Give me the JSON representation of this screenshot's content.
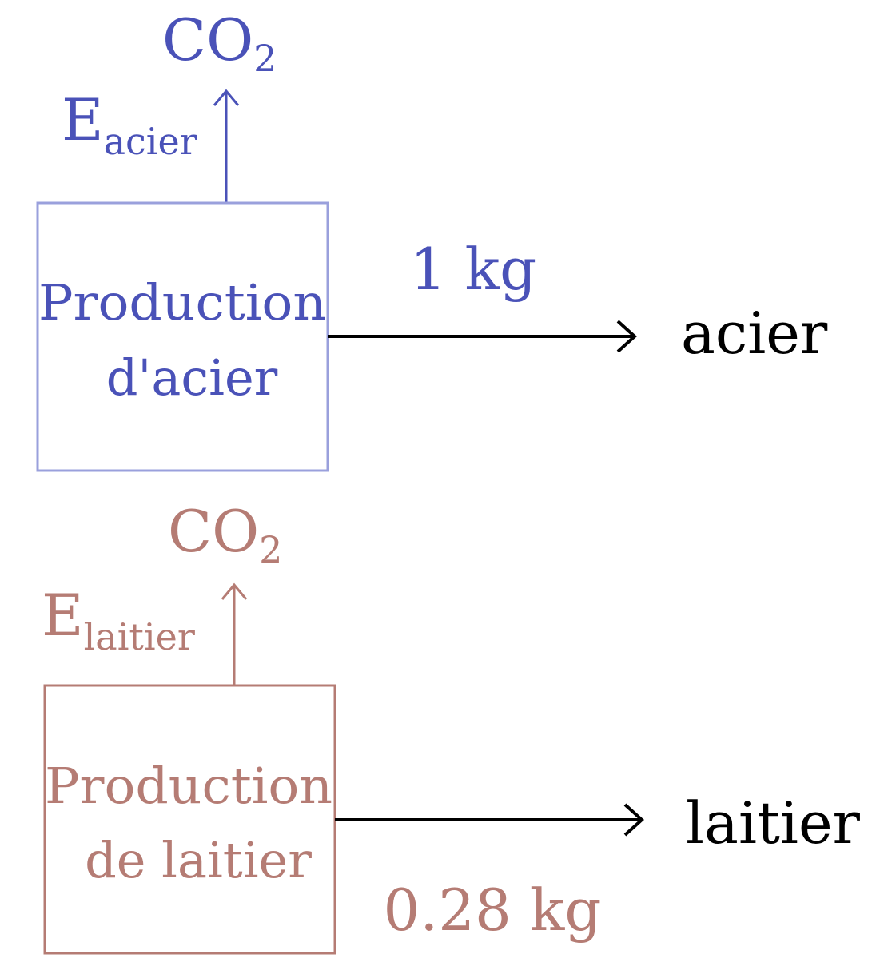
{
  "colors": {
    "steel": "#4a52b8",
    "steel_box": "#9aa0dc",
    "slag": "#b57c74",
    "black": "#000000"
  },
  "steel": {
    "gas": "CO",
    "gas_subscript": "2",
    "emission_symbol": "E",
    "emission_subscript": "acier",
    "box_line1": "Production",
    "box_line2": "d'acier",
    "quantity": "1 kg",
    "output": "acier"
  },
  "slag": {
    "gas": "CO",
    "gas_subscript": "2",
    "emission_symbol": "E",
    "emission_subscript": "laitier",
    "box_line1": "Production",
    "box_line2": "de laitier",
    "quantity": "0.28 kg",
    "output": "laitier"
  }
}
